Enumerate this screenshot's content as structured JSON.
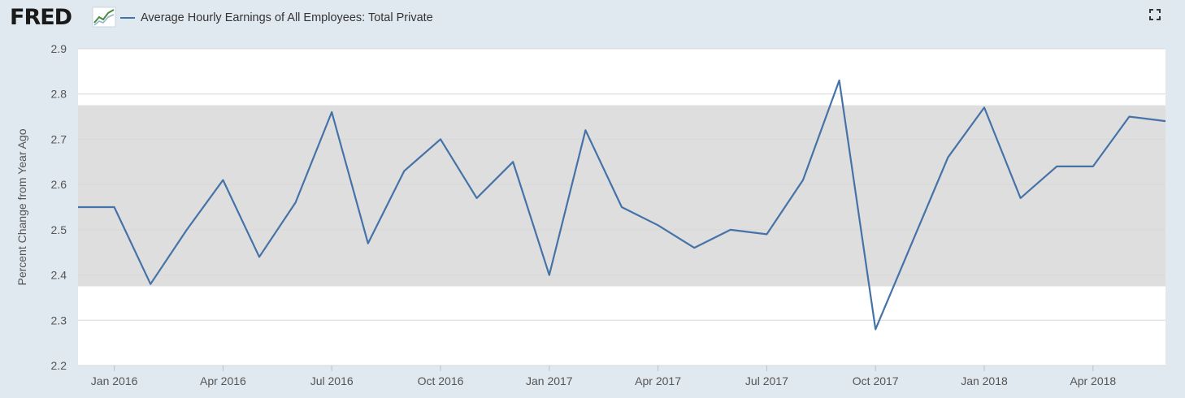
{
  "header": {
    "logo_text": "FRED",
    "logo_icon": "trend-chart-icon",
    "title": "Average Hourly Earnings of All Employees: Total Private",
    "fullscreen_icon": "fullscreen-icon"
  },
  "colors": {
    "page_background": "#e1e9f0",
    "plot_background": "#ffffff",
    "recession_band": "#dedede",
    "series": "#4572a7",
    "grid": "#d8d8d8",
    "axis_text": "#555555"
  },
  "chart_data": {
    "type": "line",
    "title": "Average Hourly Earnings of All Employees: Total Private",
    "ylabel": "Percent Change from Year Ago",
    "xlabel": "",
    "ylim": [
      2.2,
      2.9
    ],
    "yticks": [
      2.2,
      2.3,
      2.4,
      2.5,
      2.6,
      2.7,
      2.8,
      2.9
    ],
    "grid": true,
    "legend": "top-left",
    "shaded_band": {
      "y_from": 2.375,
      "y_to": 2.775
    },
    "xticks": [
      {
        "date": "2016-01",
        "label": "Jan 2016"
      },
      {
        "date": "2016-04",
        "label": "Apr 2016"
      },
      {
        "date": "2016-07",
        "label": "Jul 2016"
      },
      {
        "date": "2016-10",
        "label": "Oct 2016"
      },
      {
        "date": "2017-01",
        "label": "Jan 2017"
      },
      {
        "date": "2017-04",
        "label": "Apr 2017"
      },
      {
        "date": "2017-07",
        "label": "Jul 2017"
      },
      {
        "date": "2017-10",
        "label": "Oct 2017"
      },
      {
        "date": "2018-01",
        "label": "Jan 2018"
      },
      {
        "date": "2018-04",
        "label": "Apr 2018"
      }
    ],
    "series": [
      {
        "x": [
          "2015-12",
          "2016-01",
          "2016-02",
          "2016-03",
          "2016-04",
          "2016-05",
          "2016-06",
          "2016-07",
          "2016-08",
          "2016-09",
          "2016-10",
          "2016-11",
          "2016-12",
          "2017-01",
          "2017-02",
          "2017-03",
          "2017-04",
          "2017-05",
          "2017-06",
          "2017-07",
          "2017-08",
          "2017-09",
          "2017-10",
          "2017-11",
          "2017-12",
          "2018-01",
          "2018-02",
          "2018-03",
          "2018-04",
          "2018-05",
          "2018-06"
        ],
        "values": [
          2.55,
          2.55,
          2.38,
          2.5,
          2.61,
          2.44,
          2.56,
          2.76,
          2.47,
          2.63,
          2.7,
          2.57,
          2.65,
          2.4,
          2.72,
          2.55,
          2.51,
          2.46,
          2.5,
          2.49,
          2.61,
          2.83,
          2.28,
          2.47,
          2.66,
          2.77,
          2.57,
          2.64,
          2.64,
          2.75,
          2.74
        ]
      }
    ]
  }
}
